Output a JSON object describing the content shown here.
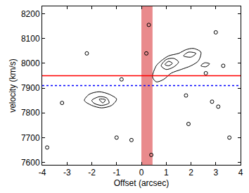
{
  "chart_data": {
    "type": "contour_lines",
    "xlabel": "Offset (arcsec)",
    "ylabel": "velocity (km/s)",
    "xlim": [
      -4,
      4
    ],
    "ylim": [
      7590,
      8230
    ],
    "xticks": [
      -4,
      -3,
      -2,
      -1,
      0,
      1,
      2,
      3,
      4
    ],
    "yticks": [
      7600,
      7700,
      7800,
      7900,
      8000,
      8100,
      8200
    ],
    "grid": false,
    "series": [
      {
        "type": "line",
        "color": "#000000",
        "line_style": "solid",
        "x": [
          0.45,
          0.6,
          0.8,
          1.1,
          1.5,
          1.8,
          2.1,
          2.4,
          2.3,
          2.0,
          1.6,
          1.2,
          0.9,
          0.6,
          0.45
        ],
        "values": [
          7945,
          7990,
          8010,
          8030,
          8040,
          8055,
          8060,
          8045,
          8010,
          7990,
          7975,
          7960,
          7935,
          7925,
          7945
        ]
      },
      {
        "type": "line",
        "color": "#000000",
        "line_style": "solid",
        "x": [
          0.8,
          1.0,
          1.3,
          1.5,
          1.3,
          1.0,
          0.8
        ],
        "values": [
          7990,
          8015,
          8020,
          8005,
          7985,
          7975,
          7990
        ]
      },
      {
        "type": "line",
        "color": "#000000",
        "line_style": "solid",
        "x": [
          0.95,
          1.1,
          1.25,
          1.1,
          0.95
        ],
        "values": [
          7995,
          8008,
          8000,
          7990,
          7995
        ]
      },
      {
        "type": "line",
        "color": "#000000",
        "line_style": "solid",
        "x": [
          1.7,
          1.9,
          2.2,
          2.0,
          1.7
        ],
        "values": [
          8030,
          8045,
          8040,
          8025,
          8030
        ]
      },
      {
        "type": "line",
        "color": "#000000",
        "line_style": "solid",
        "x": [
          2.4,
          2.55,
          2.75,
          2.6,
          2.4
        ],
        "values": [
          7990,
          8002,
          7998,
          7986,
          7990
        ]
      },
      {
        "type": "line",
        "color": "#000000",
        "line_style": "solid",
        "x": [
          -2.3,
          -2.1,
          -1.7,
          -1.3,
          -1.0,
          -1.2,
          -1.6,
          -2.0,
          -2.3
        ],
        "values": [
          7850,
          7875,
          7885,
          7875,
          7855,
          7830,
          7820,
          7830,
          7850
        ]
      },
      {
        "type": "line",
        "color": "#000000",
        "line_style": "solid",
        "x": [
          -2.0,
          -1.7,
          -1.4,
          -1.3,
          -1.6,
          -1.9,
          -2.0
        ],
        "values": [
          7850,
          7865,
          7860,
          7840,
          7830,
          7838,
          7850
        ]
      },
      {
        "type": "line",
        "color": "#000000",
        "line_style": "solid",
        "x": [
          -1.7,
          -1.45,
          -1.55,
          -1.7
        ],
        "values": [
          7855,
          7853,
          7840,
          7855
        ]
      },
      {
        "type": "scatter",
        "color": "#000000",
        "marker": "circle-open",
        "x": [
          -2.2,
          -3.2,
          -3.8,
          -1.0,
          -0.4,
          0.4,
          0.3,
          0.2,
          2.85,
          3.1,
          3.0,
          3.55,
          1.8,
          -0.8,
          3.3,
          2.6,
          1.9
        ],
        "values": [
          8040,
          7840,
          7660,
          7700,
          7690,
          7630,
          8155,
          8040,
          7845,
          7825,
          8125,
          7700,
          7870,
          7935,
          7990,
          7960,
          7755
        ]
      }
    ],
    "shaded_x_range": {
      "range": [
        0,
        0.45
      ],
      "color": "#e98a8c"
    },
    "lines": [
      {
        "y": 7950,
        "color": "#ff0000",
        "line_style": "solid"
      },
      {
        "y": 7910,
        "color": "#0000ff",
        "line_style": "dot"
      }
    ]
  }
}
